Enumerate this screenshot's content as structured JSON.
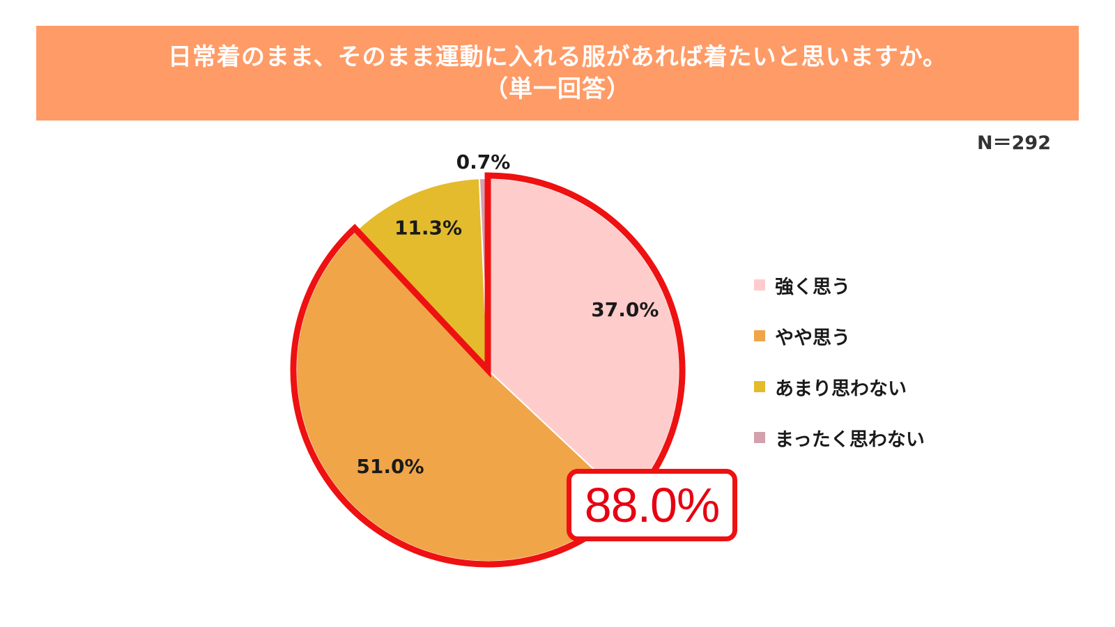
{
  "title": {
    "line1": "日常着のまま、そのまま運動に入れる服があれば着たいと思いますか。",
    "line2": "（単一回答）"
  },
  "sample_size": "N＝292",
  "highlight": {
    "value": "88.0%",
    "covers": [
      "強く思う",
      "やや思う"
    ],
    "outline_color": "#ee1111"
  },
  "colors": {
    "title_band": "#FF9B66",
    "highlight_text": "#e60012"
  },
  "chart_data": {
    "type": "pie",
    "title": "日常着のまま、そのまま運動に入れる服があれば着たいと思いますか。（単一回答）",
    "start_angle": "12 o'clock",
    "direction": "clockwise",
    "legend_position": "right",
    "slices": [
      {
        "name": "強く思う",
        "value": 37.0,
        "label": "37.0%",
        "color": "#FFCCCC"
      },
      {
        "name": "やや思う",
        "value": 51.0,
        "label": "51.0%",
        "color": "#F0A548"
      },
      {
        "name": "あまり思わない",
        "value": 11.3,
        "label": "11.3%",
        "color": "#E3BB2C"
      },
      {
        "name": "まったく思わない",
        "value": 0.7,
        "label": "0.7%",
        "color": "#D4A0AE"
      }
    ]
  }
}
